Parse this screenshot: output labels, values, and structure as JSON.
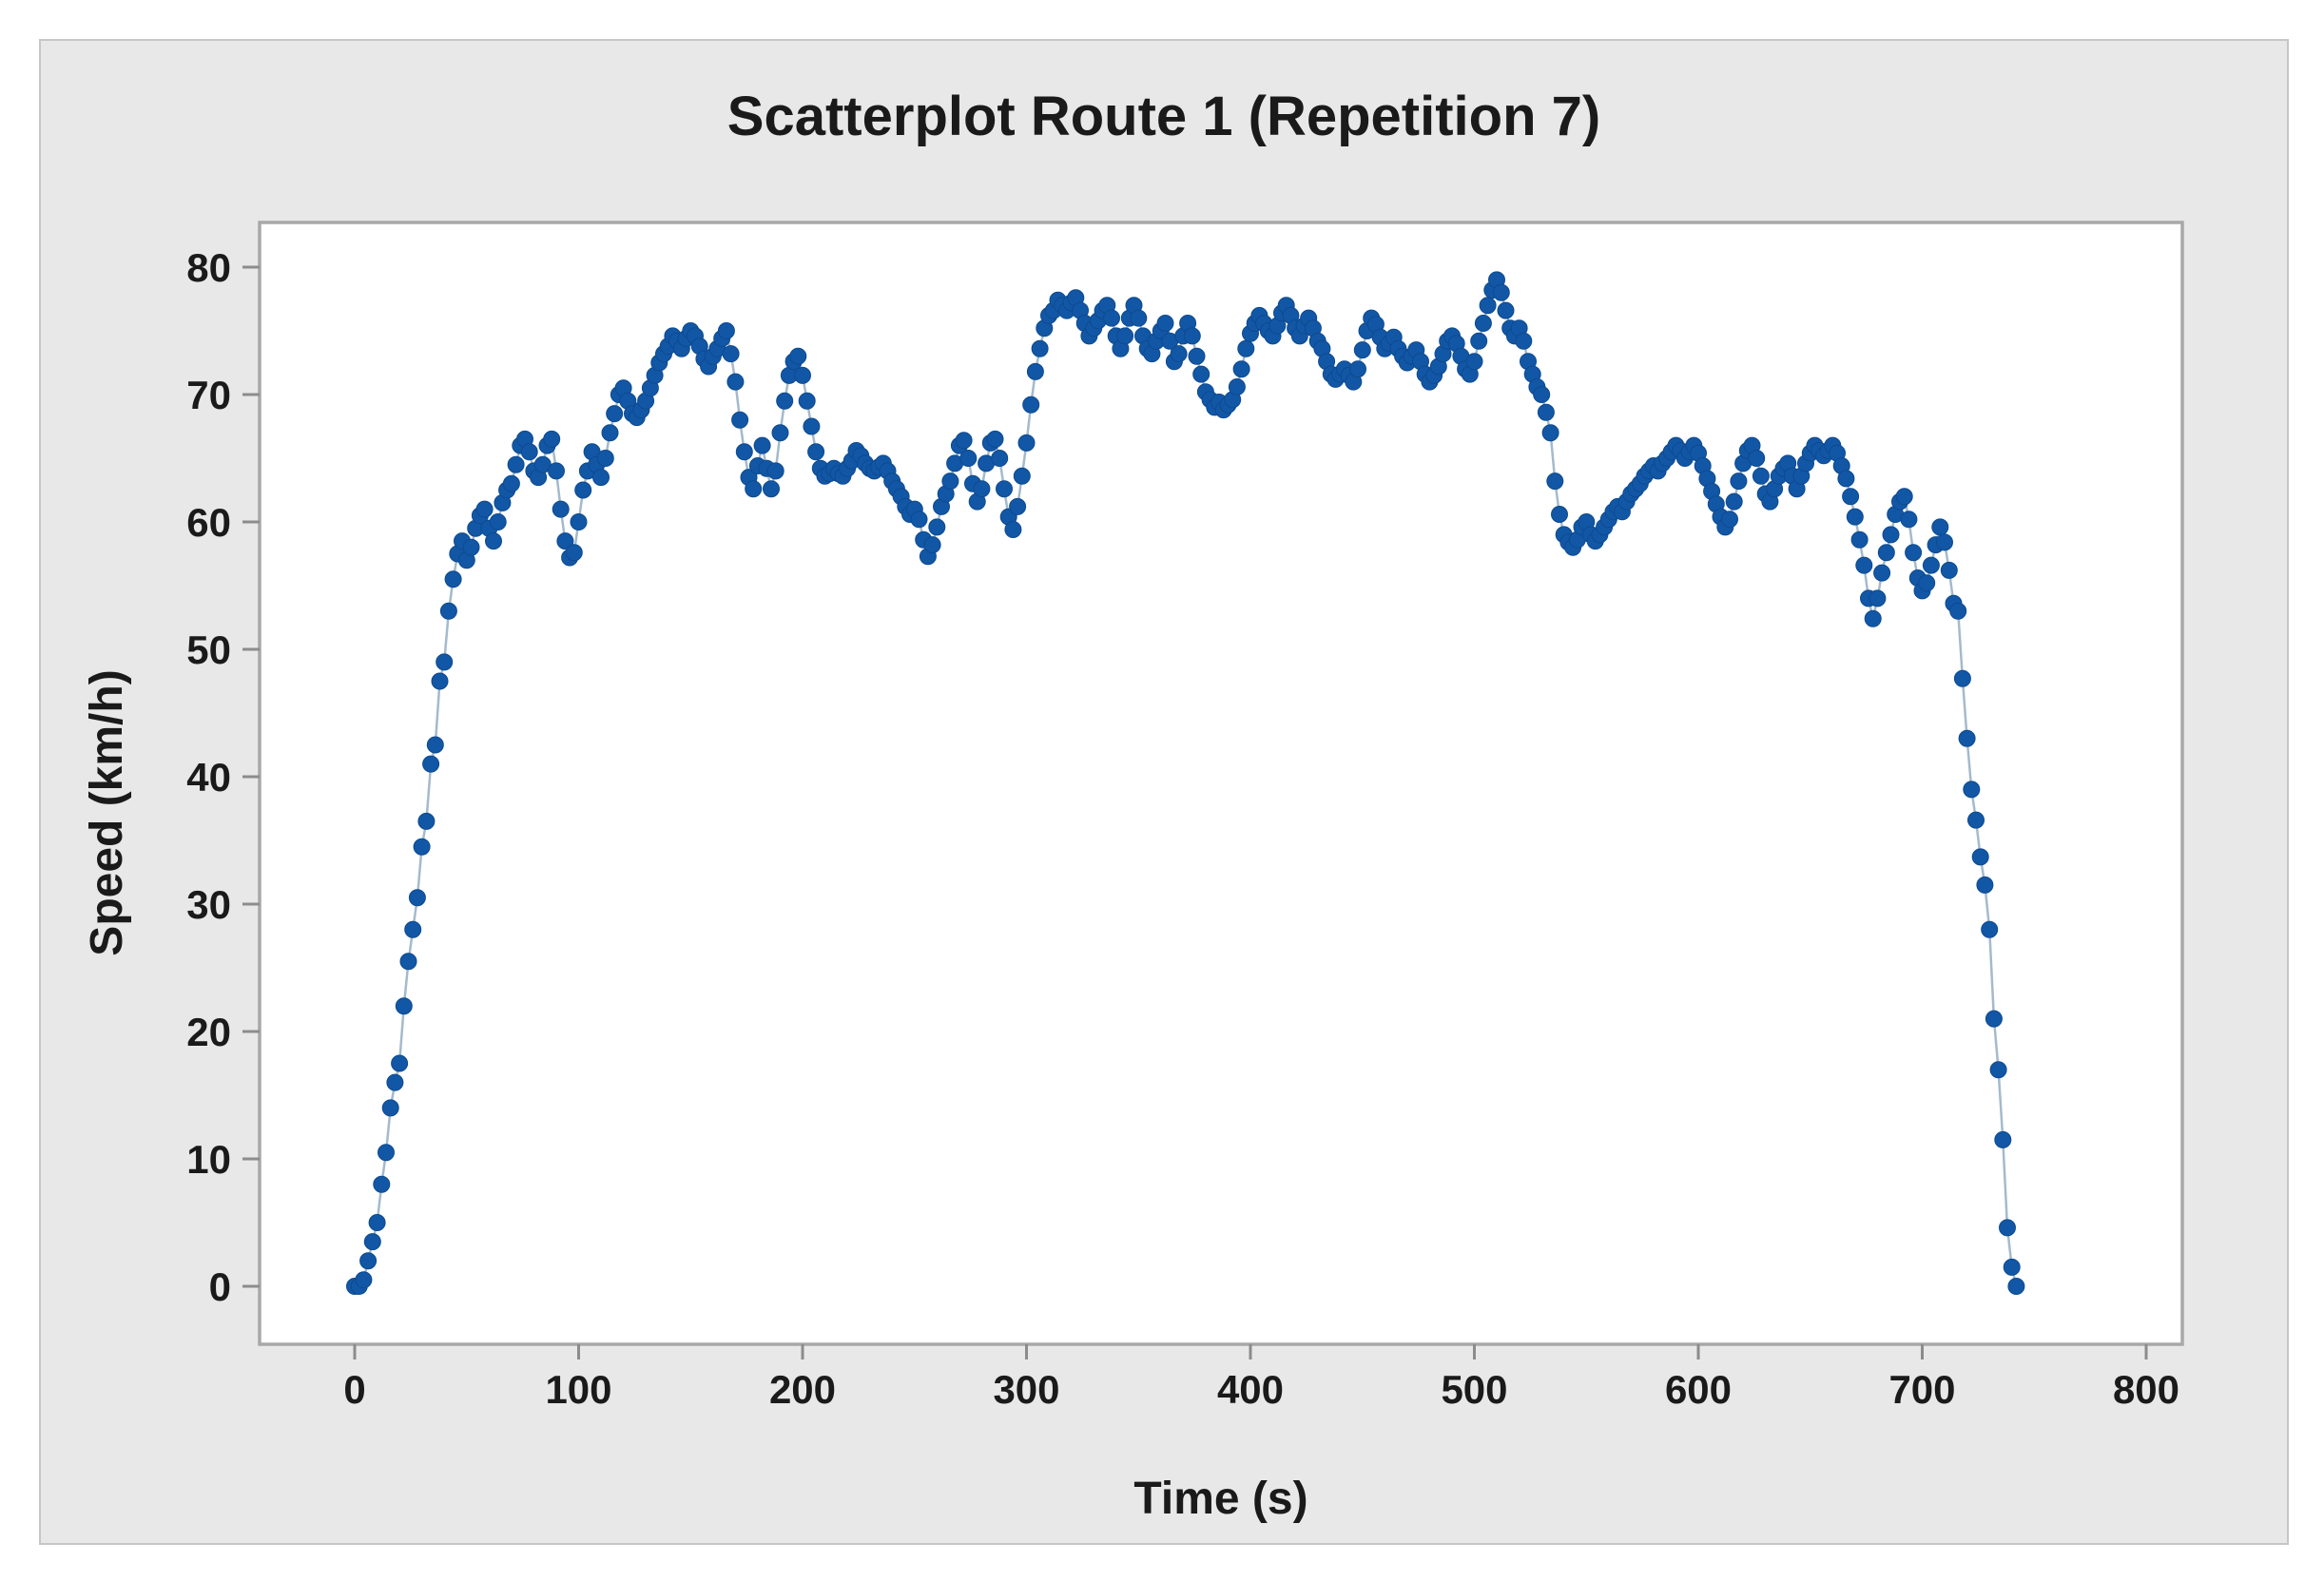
{
  "title": "Scatterplot Route 1 (Repetition 7)",
  "chart_data": {
    "type": "scatter",
    "title": "Scatterplot Route 1 (Repetition 7)",
    "xlabel": "Time (s)",
    "ylabel": "Speed (km/h)",
    "xlim": [
      -42,
      816
    ],
    "ylim": [
      -4.5,
      83.5
    ],
    "x_ticks": [
      0,
      100,
      200,
      300,
      400,
      500,
      600,
      700,
      800
    ],
    "y_ticks": [
      0,
      10,
      20,
      30,
      40,
      50,
      60,
      70,
      80
    ],
    "grid": false,
    "legend": "none",
    "marker_shape": "filled-circle",
    "connect_line": true,
    "series": [
      {
        "name": "Speed",
        "time_start_s": 0,
        "time_step_s": 2,
        "point_count": 372,
        "speeds_kmh": [
          0,
          0,
          0.5,
          2,
          3.5,
          5,
          8,
          10.5,
          14,
          16,
          17.5,
          22,
          25.5,
          28,
          30.5,
          34.5,
          36.5,
          41,
          42.5,
          47.5,
          49,
          53,
          55.5,
          57.5,
          58.5,
          57,
          58,
          59.5,
          60.5,
          61,
          59.5,
          58.5,
          60,
          61.5,
          62.5,
          63,
          64.5,
          66,
          66.5,
          65.5,
          64,
          63.5,
          64.5,
          66,
          66.5,
          64,
          61,
          58.5,
          57.2,
          57.6,
          60,
          62.5,
          64,
          65.5,
          64.5,
          63.5,
          65,
          67,
          68.5,
          70,
          70.5,
          69.5,
          68.5,
          68.2,
          68.8,
          69.5,
          70.5,
          71.5,
          72.5,
          73.2,
          73.8,
          74.6,
          74.2,
          73.6,
          74.4,
          75,
          74.6,
          73.8,
          72.8,
          72.2,
          73,
          73.6,
          74.4,
          75,
          73.2,
          71,
          68,
          65.5,
          63.5,
          62.6,
          64.4,
          66,
          64.2,
          62.6,
          64,
          67,
          69.5,
          71.5,
          72.6,
          73,
          71.5,
          69.5,
          67.5,
          65.5,
          64.2,
          63.6,
          63.8,
          64.2,
          63.8,
          63.6,
          64.2,
          64.8,
          65.6,
          65.2,
          64.6,
          64.2,
          64,
          64.3,
          64.6,
          64,
          63.2,
          62.6,
          62,
          61.2,
          60.6,
          61,
          60.2,
          58.6,
          57.3,
          58.2,
          59.6,
          61.2,
          62.2,
          63.2,
          64.6,
          66,
          66.4,
          65,
          63,
          61.6,
          62.6,
          64.6,
          66.2,
          66.5,
          65,
          62.6,
          60.4,
          59.4,
          61.2,
          63.6,
          66.2,
          69.2,
          71.8,
          73.6,
          75.2,
          76.2,
          76.6,
          77.4,
          77,
          76.6,
          77.2,
          77.6,
          76.6,
          75.6,
          74.6,
          75.2,
          75.8,
          76.6,
          77,
          76,
          74.6,
          73.6,
          74.6,
          76,
          77,
          76,
          74.6,
          73.6,
          73.2,
          74.2,
          75,
          75.6,
          74.2,
          72.6,
          73.2,
          74.6,
          75.6,
          74.6,
          73,
          71.6,
          70.2,
          69.6,
          69,
          69.4,
          68.8,
          69.2,
          69.6,
          70.6,
          72,
          73.6,
          74.8,
          75.6,
          76.2,
          75.6,
          75,
          74.6,
          75.4,
          76.4,
          77,
          76.2,
          75.2,
          74.6,
          75.4,
          76,
          75.2,
          74.2,
          73.6,
          72.6,
          71.6,
          71.2,
          71.6,
          72,
          71.5,
          71,
          72,
          73.5,
          75,
          76,
          75.5,
          74.5,
          73.6,
          74,
          74.5,
          73.6,
          73,
          72.5,
          73,
          73.5,
          72.6,
          71.6,
          71,
          71.5,
          72.2,
          73.2,
          74.2,
          74.6,
          74,
          73,
          72,
          71.6,
          72.6,
          74.2,
          75.6,
          77,
          78.2,
          79,
          78,
          76.6,
          75.2,
          74.6,
          75.2,
          74.2,
          72.6,
          71.6,
          70.6,
          70,
          68.6,
          67,
          63.2,
          60.6,
          59,
          58.4,
          58,
          58.6,
          59.6,
          60,
          59,
          58.5,
          59,
          59.6,
          60.2,
          60.8,
          61.2,
          60.8,
          61.6,
          62.2,
          62.6,
          63,
          63.6,
          64,
          64.4,
          64,
          64.6,
          65,
          65.5,
          66,
          65.6,
          65,
          65.5,
          66,
          65.4,
          64.4,
          63.4,
          62.4,
          61.4,
          60.4,
          59.6,
          60.2,
          61.6,
          63.2,
          64.6,
          65.6,
          66,
          65,
          63.6,
          62.2,
          61.6,
          62.6,
          63.6,
          64.2,
          64.6,
          63.6,
          62.6,
          63.6,
          64.6,
          65.4,
          66,
          65.6,
          65.2,
          65.6,
          66,
          65.4,
          64.4,
          63.4,
          62,
          60.4,
          58.6,
          56.6,
          54,
          52.4,
          54,
          56,
          57.6,
          59,
          60.6,
          61.6,
          62,
          60.2,
          57.6,
          55.6,
          54.6,
          55.2,
          56.6,
          58.2,
          59.6,
          58.4,
          56.2,
          53.6,
          53,
          47.7,
          43,
          39,
          36.6,
          33.7,
          31.5,
          28,
          21,
          17,
          11.5,
          4.6,
          1.5,
          0
        ]
      }
    ]
  },
  "colors": {
    "page_background": "#ffffff",
    "panel_background": "#e8e8e8",
    "panel_border": "#c6c6c6",
    "plot_background": "#ffffff",
    "plot_border": "#a8a8a8",
    "tick_mark": "#8c8c8c",
    "marker_fill": "#1257a6",
    "marker_edge": "#0d4a8f",
    "connector_line": "#a4bacc",
    "text": "#1a1a1a"
  }
}
